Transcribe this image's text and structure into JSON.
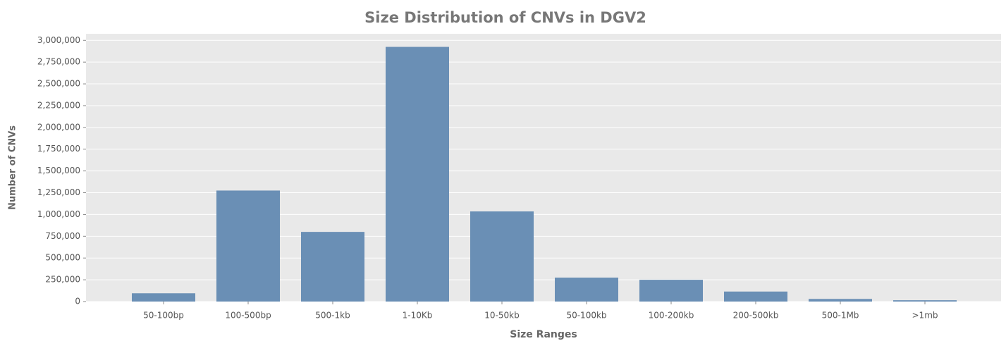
{
  "chart_data": {
    "type": "bar",
    "title": "Size Distribution of CNVs in DGV2",
    "xlabel": "Size Ranges",
    "ylabel": "Number of CNVs",
    "categories": [
      "50-100bp",
      "100-500bp",
      "500-1kb",
      "1-10Kb",
      "10-50kb",
      "50-100kb",
      "100-200kb",
      "200-500kb",
      "500-1Mb",
      ">1mb"
    ],
    "values": [
      95000,
      1275000,
      800000,
      2925000,
      1035000,
      275000,
      250000,
      115000,
      30000,
      15000
    ],
    "color": "#6a8fb5",
    "ylim": [
      0,
      3075000
    ],
    "yticks": [
      0,
      {
        "value": 250000,
        "label": "250,000"
      },
      {
        "value": 500000,
        "label": "500,000"
      },
      {
        "value": 750000,
        "label": "750,000"
      },
      {
        "value": 1000000,
        "label": "1,000,000"
      },
      {
        "value": 1250000,
        "label": "1,250,000"
      },
      {
        "value": 1500000,
        "label": "1,500,000"
      },
      {
        "value": 1750000,
        "label": "1,750,000"
      },
      {
        "value": 2000000,
        "label": "2,000,000"
      },
      {
        "value": 2250000,
        "label": "2,250,000"
      },
      {
        "value": 2500000,
        "label": "2,500,000"
      },
      {
        "value": 2750000,
        "label": "2,750,000"
      },
      {
        "value": 3000000,
        "label": "3,000,000"
      }
    ],
    "grid": true
  }
}
